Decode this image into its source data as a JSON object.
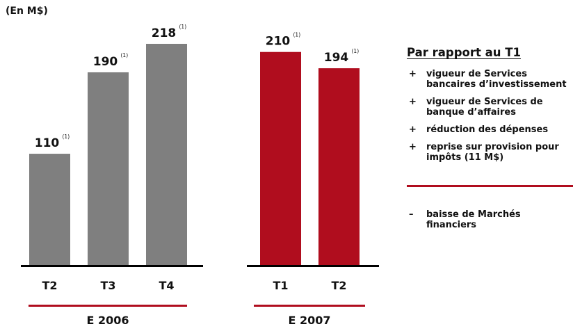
{
  "unit_label": "(En M$)",
  "colors": {
    "bar_2006": "#7f7f7f",
    "bar_2007": "#b00d1e",
    "group_rule": "#b00d1e",
    "baseline": "#000000"
  },
  "chart_data": {
    "type": "bar",
    "y_unit": "M$",
    "groups": [
      {
        "name": "E 2006",
        "color": "#7f7f7f",
        "categories": [
          "T2",
          "T3",
          "T4"
        ],
        "values": [
          110,
          190,
          218
        ],
        "labels": [
          "110",
          "190",
          "218"
        ]
      },
      {
        "name": "E 2007",
        "color": "#b00d1e",
        "categories": [
          "T1",
          "T2"
        ],
        "values": [
          210,
          194
        ],
        "labels": [
          "210",
          "194"
        ]
      }
    ],
    "footnote_marker": "(1)",
    "ylim": [
      0,
      218
    ],
    "grid": false,
    "legend": "none"
  },
  "sidebar": {
    "title": "Par rapport au T1",
    "positives": [
      {
        "sign": "+",
        "text": "vigueur de Services bancaires d’investissement"
      },
      {
        "sign": "+",
        "text": "vigueur de Services de banque d’affaires"
      },
      {
        "sign": "+",
        "text": "réduction des dépenses"
      },
      {
        "sign": "+",
        "text": "reprise sur provision pour impôts (11 M$)"
      }
    ],
    "negatives": [
      {
        "sign": "–",
        "text": "baisse de Marchés financiers"
      }
    ]
  }
}
